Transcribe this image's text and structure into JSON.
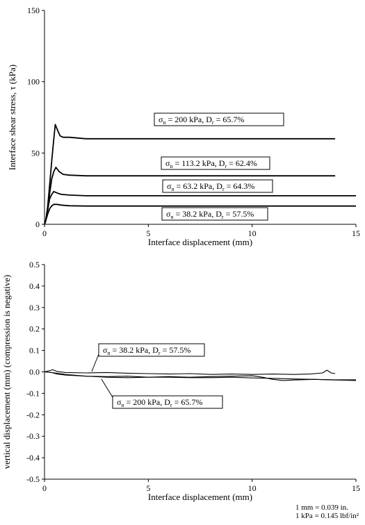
{
  "chart_data": [
    {
      "type": "line",
      "xlabel": "Interface displacement (mm)",
      "ylabel": "Interface shear stress, τ (kPa)",
      "xlim": [
        0,
        15
      ],
      "ylim": [
        0,
        150
      ],
      "xticks": [
        "0",
        "5",
        "10",
        "15"
      ],
      "yticks": [
        "0",
        "50",
        "100",
        "150"
      ],
      "grid": false,
      "annotations": [
        {
          "sigma": "200 kPa",
          "dr": "65.7%"
        },
        {
          "sigma": "113.2 kPa",
          "dr": "62.4%"
        },
        {
          "sigma": "63.2 kPa",
          "dr": "64.3%"
        },
        {
          "sigma": "38.2 kPa",
          "dr": "57.5%"
        }
      ],
      "series": [
        {
          "x": [
            0,
            0.05,
            0.15,
            0.25,
            0.35,
            0.45,
            0.52,
            0.6,
            0.75,
            0.9,
            1.2,
            2,
            3,
            4,
            6,
            8,
            10,
            12,
            14
          ],
          "y": [
            0,
            2,
            12,
            28,
            45,
            60,
            70,
            67,
            62,
            61,
            61,
            60,
            60,
            60,
            60,
            60,
            60,
            60,
            60
          ]
        },
        {
          "x": [
            0,
            0.05,
            0.15,
            0.25,
            0.35,
            0.45,
            0.55,
            0.7,
            0.9,
            1.2,
            2,
            4,
            6,
            8,
            10,
            12,
            14
          ],
          "y": [
            0,
            2,
            10,
            22,
            32,
            37,
            40,
            37,
            35,
            34.5,
            34,
            34,
            34,
            34,
            34,
            34,
            34
          ]
        },
        {
          "x": [
            0,
            0.05,
            0.15,
            0.25,
            0.35,
            0.45,
            0.6,
            0.8,
            1.2,
            2,
            4,
            6,
            8,
            10,
            12,
            15
          ],
          "y": [
            0,
            2,
            10,
            18,
            21,
            23,
            22,
            21,
            20.5,
            20,
            20,
            20,
            20,
            20,
            20,
            20
          ]
        },
        {
          "x": [
            0,
            0.05,
            0.15,
            0.25,
            0.35,
            0.45,
            0.6,
            0.8,
            1.2,
            2,
            4,
            6,
            8,
            10,
            12,
            15
          ],
          "y": [
            0,
            2,
            7,
            11,
            13,
            14,
            14,
            13.5,
            13,
            12.8,
            12.8,
            12.8,
            12.8,
            12.8,
            12.8,
            12.8
          ]
        }
      ]
    },
    {
      "type": "line",
      "xlabel": "Interface displacement (mm)",
      "ylabel": "vertical displacement (mm) (compression is negative)",
      "xlim": [
        0,
        15
      ],
      "ylim": [
        -0.5,
        0.5
      ],
      "xticks": [
        "0",
        "5",
        "10",
        "15"
      ],
      "yticks": [
        "0.5",
        "0.4",
        "0.3",
        "0.2",
        "0.1",
        "0.0",
        "-0.1",
        "-0.2",
        "-0.3",
        "-0.4",
        "-0.5"
      ],
      "grid": false,
      "annotations": [
        {
          "sigma": "38.2 kPa",
          "dr": "57.5%"
        },
        {
          "sigma": "200 kPa",
          "dr": "65.7%"
        }
      ],
      "series": [
        {
          "x": [
            0,
            0.2,
            0.4,
            0.6,
            1,
            2,
            3,
            4,
            5,
            6,
            7,
            8,
            9,
            10,
            11,
            12,
            12.8,
            13.4,
            13.6,
            13.8,
            14
          ],
          "y": [
            0,
            0.005,
            0.01,
            0.002,
            -0.003,
            -0.005,
            -0.003,
            -0.006,
            -0.008,
            -0.01,
            -0.008,
            -0.012,
            -0.01,
            -0.012,
            -0.01,
            -0.012,
            -0.01,
            -0.005,
            0.008,
            -0.005,
            -0.008
          ]
        },
        {
          "x": [
            0,
            0.3,
            0.6,
            1,
            2,
            3,
            4,
            5,
            6,
            7,
            8,
            9,
            10,
            11,
            12,
            13,
            14,
            15
          ],
          "y": [
            0,
            -0.002,
            -0.01,
            -0.015,
            -0.02,
            -0.022,
            -0.02,
            -0.025,
            -0.025,
            -0.027,
            -0.027,
            -0.025,
            -0.028,
            -0.03,
            -0.033,
            -0.035,
            -0.037,
            -0.037
          ]
        },
        {
          "x": [
            0,
            0.5,
            1,
            2,
            3,
            4,
            5,
            6,
            7,
            8,
            9,
            10,
            10.5,
            11,
            11.5,
            12,
            13,
            14,
            15
          ],
          "y": [
            0,
            -0.005,
            -0.012,
            -0.02,
            -0.025,
            -0.027,
            -0.025,
            -0.022,
            -0.025,
            -0.022,
            -0.02,
            -0.018,
            -0.025,
            -0.035,
            -0.04,
            -0.038,
            -0.035,
            -0.038,
            -0.04
          ]
        }
      ]
    }
  ],
  "conversion_note": [
    "1 mm = 0.039 in.",
    "1 kPa = 0.145 lbf/in²"
  ]
}
